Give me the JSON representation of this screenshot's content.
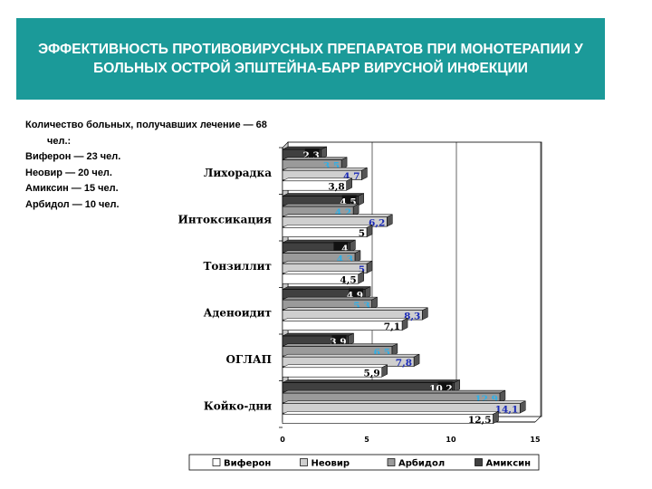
{
  "slide": {
    "title": "ЭФФЕКТИВНОСТЬ ПРОТИВОВИРУСНЫХ ПРЕПАРАТОВ ПРИ МОНОТЕРАПИИ У БОЛЬНЫХ ОСТРОЙ ЭПШТЕЙНА-БАРР ВИРУСНОЙ ИНФЕКЦИИ",
    "patients_line1": "Количество больных, получавших лечение — 68",
    "patients_line2": "чел.:",
    "groups": [
      "Виферон — 23 чел.",
      "Неовир — 20 чел.",
      "Амиксин — 15 чел.",
      "Арбидол — 10 чел."
    ]
  },
  "chart_data": {
    "type": "bar",
    "orientation": "horizontal",
    "categories": [
      "Лихорадка",
      "Интоксикация",
      "Тонзиллит",
      "Аденоидит",
      "ОГЛАП",
      "Койко-дни"
    ],
    "series": [
      {
        "name": "Амиксин",
        "color": "#404040",
        "values": [
          2.3,
          4.5,
          4,
          4.9,
          3.9,
          10.2
        ],
        "labels": [
          "2,3",
          "4,5",
          "4",
          "4,9",
          "3,9",
          "10,2"
        ],
        "label_color": "#ffffff"
      },
      {
        "name": "Арбидол",
        "color": "#9a9a9a",
        "values": [
          3.5,
          4.2,
          4.3,
          5.3,
          6.5,
          12.9
        ],
        "labels": [
          "3,5",
          "4,2",
          "4,3",
          "5,3",
          "6,5",
          "12,9"
        ],
        "label_color": "#2fb0e8"
      },
      {
        "name": "Неовир",
        "color": "#cfcfcf",
        "values": [
          4.7,
          6.2,
          5,
          8.3,
          7.8,
          14.1
        ],
        "labels": [
          "4,7",
          "6,2",
          "5",
          "8,3",
          "7,8",
          "14,1"
        ],
        "label_color": "#1a2ab8"
      },
      {
        "name": "Виферон",
        "color": "#ffffff",
        "values": [
          3.8,
          5,
          4.5,
          7.1,
          5.9,
          12.5
        ],
        "labels": [
          "3,8",
          "5",
          "4,5",
          "7,1",
          "5,9",
          "12,5"
        ],
        "label_color": "#000000"
      }
    ],
    "x_ticks": [
      "0",
      "5",
      "10",
      "15"
    ],
    "xlim": [
      0,
      15
    ],
    "legend": [
      "Виферон",
      "Неовир",
      "Арбидол",
      "Амиксин"
    ],
    "legend_colors": [
      "#ffffff",
      "#cfcfcf",
      "#9a9a9a",
      "#404040"
    ],
    "grid": true,
    "legend_position": "bottom"
  }
}
